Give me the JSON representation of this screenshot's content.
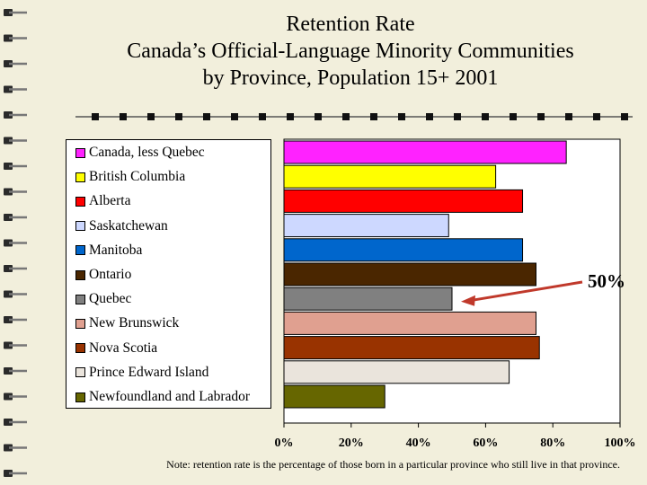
{
  "title_lines": [
    "Retention Rate",
    "Canada’s Official-Language Minority Communities",
    "by Province, Population 15+ 2001"
  ],
  "chart_data": {
    "type": "bar",
    "orientation": "horizontal",
    "categories": [
      "Canada, less Quebec",
      "British Columbia",
      "Alberta",
      "Saskatchewan",
      "Manitoba",
      "Ontario",
      "Quebec",
      "New Brunswick",
      "Nova Scotia",
      "Prince Edward Island",
      "Newfoundland and Labrador"
    ],
    "values": [
      0.84,
      0.63,
      0.71,
      0.49,
      0.71,
      0.75,
      0.5,
      0.75,
      0.76,
      0.67,
      0.3
    ],
    "colors": [
      "#ff22ff",
      "#ffff00",
      "#ff0000",
      "#cdd8ff",
      "#0066cc",
      "#4a2600",
      "#808080",
      "#e0a090",
      "#993300",
      "#eae4dc",
      "#666600"
    ],
    "xlim": [
      0,
      1
    ],
    "x_ticks": [
      "0%",
      "20%",
      "40%",
      "60%",
      "80%",
      "100%"
    ],
    "legend_position": "left",
    "annotation": {
      "text": "50%",
      "target": "Quebec"
    }
  },
  "note": "Note:  retention rate is the percentage of those born in a particular province who still live in that province."
}
